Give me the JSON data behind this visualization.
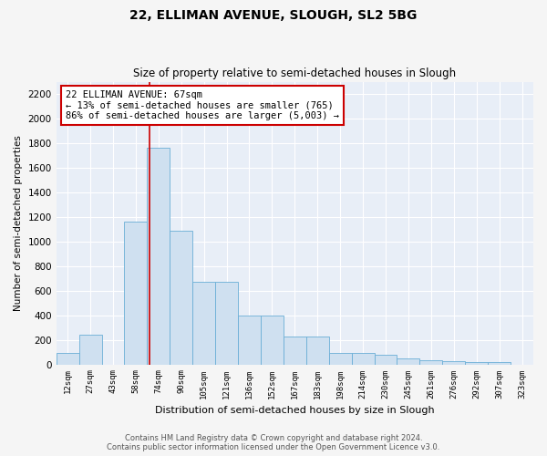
{
  "title1": "22, ELLIMAN AVENUE, SLOUGH, SL2 5BG",
  "title2": "Size of property relative to semi-detached houses in Slough",
  "xlabel": "Distribution of semi-detached houses by size in Slough",
  "ylabel": "Number of semi-detached properties",
  "bar_color": "#cfe0f0",
  "bar_edge_color": "#6aaed6",
  "bg_color": "#e8eef7",
  "grid_color": "#ffffff",
  "categories": [
    "12sqm",
    "27sqm",
    "43sqm",
    "58sqm",
    "74sqm",
    "90sqm",
    "105sqm",
    "121sqm",
    "136sqm",
    "152sqm",
    "167sqm",
    "183sqm",
    "198sqm",
    "214sqm",
    "230sqm",
    "245sqm",
    "261sqm",
    "276sqm",
    "292sqm",
    "307sqm",
    "323sqm"
  ],
  "values": [
    90,
    240,
    0,
    1160,
    1760,
    1090,
    670,
    670,
    400,
    400,
    230,
    230,
    90,
    90,
    80,
    50,
    35,
    30,
    20,
    20,
    0
  ],
  "vline_x_idx": 3.62,
  "annotation_text": "22 ELLIMAN AVENUE: 67sqm\n← 13% of semi-detached houses are smaller (765)\n86% of semi-detached houses are larger (5,003) →",
  "annot_box_color": "#ffffff",
  "annot_box_edge_color": "#cc0000",
  "footer1": "Contains HM Land Registry data © Crown copyright and database right 2024.",
  "footer2": "Contains public sector information licensed under the Open Government Licence v3.0.",
  "ylim": [
    0,
    2300
  ],
  "yticks": [
    0,
    200,
    400,
    600,
    800,
    1000,
    1200,
    1400,
    1600,
    1800,
    2000,
    2200
  ]
}
